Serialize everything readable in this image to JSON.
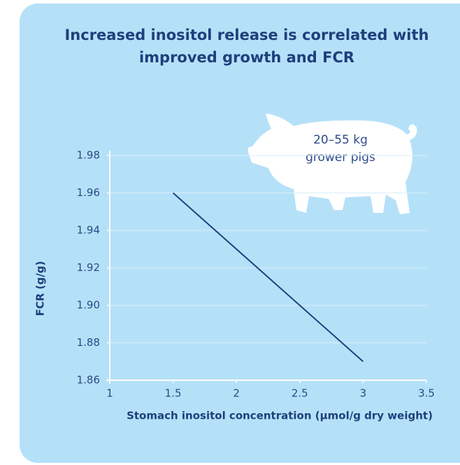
{
  "chart_data": {
    "type": "line",
    "title": "Increased inositol release is correlated with improved growth and FCR",
    "annotation": [
      "20–55 kg",
      "grower pigs"
    ],
    "x_label": "Stomach inositol concentration (µmol/g dry weight)",
    "y_label": "FCR (g/g)",
    "x": [
      1.5,
      3
    ],
    "series": [
      {
        "name": "FCR",
        "color": "#1f3f7c",
        "values": [
          1.96,
          1.87
        ]
      }
    ],
    "xlim": [
      1,
      3.5
    ],
    "xticks": [
      1,
      1.5,
      2,
      2.5,
      3,
      3.5
    ],
    "ylim": [
      1.86,
      1.98
    ],
    "yticks": [
      1.86,
      1.88,
      {
        "value": 1.9,
        "label": "1.90"
      },
      1.92,
      1.94,
      1.96,
      1.98
    ],
    "grid": true
  }
}
